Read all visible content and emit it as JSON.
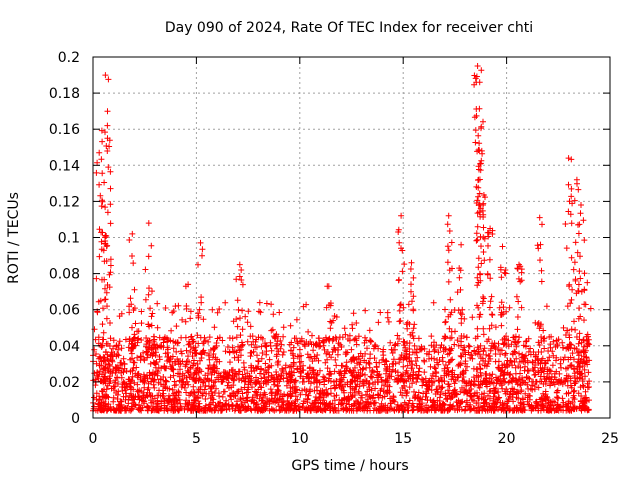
{
  "chart_data": {
    "type": "scatter",
    "title": "Day 090 of 2024, Rate Of TEC Index for receiver chti",
    "xlabel": "GPS time / hours",
    "ylabel": "ROTI / TECUs",
    "xlim": [
      0,
      25
    ],
    "ylim": [
      0,
      0.2
    ],
    "xticks": [
      "0",
      "5",
      "10",
      "15",
      "20",
      "25"
    ],
    "yticks": [
      "0",
      "0.02",
      "0.04",
      "0.06",
      "0.08",
      "0.1",
      "0.12",
      "0.14",
      "0.16",
      "0.18",
      "0.2"
    ],
    "grid": true,
    "marker": "plus",
    "color": "#ff0000",
    "x_data_range": [
      0,
      24
    ],
    "typical_y_range": [
      0.004,
      0.04
    ],
    "peaks": [
      {
        "x": 0.3,
        "y": 0.147
      },
      {
        "x": 0.6,
        "y": 0.19
      },
      {
        "x": 0.7,
        "y": 0.155
      },
      {
        "x": 1.9,
        "y": 0.102
      },
      {
        "x": 2.7,
        "y": 0.108
      },
      {
        "x": 4.6,
        "y": 0.074
      },
      {
        "x": 5.2,
        "y": 0.097
      },
      {
        "x": 7.1,
        "y": 0.085
      },
      {
        "x": 11.4,
        "y": 0.073
      },
      {
        "x": 12.6,
        "y": 0.058
      },
      {
        "x": 14.9,
        "y": 0.112
      },
      {
        "x": 15.4,
        "y": 0.086
      },
      {
        "x": 17.2,
        "y": 0.112
      },
      {
        "x": 17.8,
        "y": 0.096
      },
      {
        "x": 18.6,
        "y": 0.195
      },
      {
        "x": 18.7,
        "y": 0.186
      },
      {
        "x": 18.8,
        "y": 0.148
      },
      {
        "x": 19.2,
        "y": 0.105
      },
      {
        "x": 19.8,
        "y": 0.095
      },
      {
        "x": 20.6,
        "y": 0.085
      },
      {
        "x": 21.6,
        "y": 0.111
      },
      {
        "x": 23.0,
        "y": 0.144
      },
      {
        "x": 23.4,
        "y": 0.132
      },
      {
        "x": 23.6,
        "y": 0.118
      },
      {
        "x": 23.9,
        "y": 0.075
      }
    ]
  }
}
